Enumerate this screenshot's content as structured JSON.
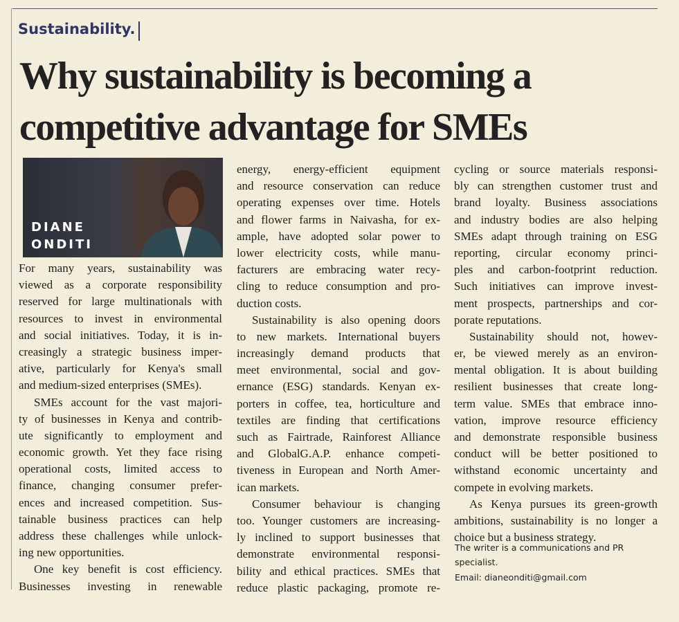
{
  "section": "Sustainability.",
  "headline": [
    "Why sustainability is becoming a",
    "competitive advantage for SMEs"
  ],
  "author": {
    "first": "DIANE",
    "last": "ONDITI"
  },
  "columns": [
    {
      "paragraphs": [
        {
          "lines": [
            "For many years, sustainability was",
            "viewed as a corporate responsibility",
            "reserved for large multinationals with",
            "resources to invest in environmental",
            "and social initiatives. Today, it is in-",
            "creasingly a strategic business imper-",
            "ative, particularly for Kenya's small",
            "and medium-sized enterprises (SMEs)."
          ]
        },
        {
          "lines": [
            "SMEs account for the vast majori-",
            "ty of businesses in Kenya and contrib-",
            "ute significantly to employment and",
            "economic growth. Yet they face rising",
            "operational costs, limited access to",
            "finance, changing consumer prefer-",
            "ences and increased competition. Sus-",
            "tainable business practices can help",
            "address these challenges while unlock-",
            "ing new opportunities."
          ]
        },
        {
          "lines": [
            "One key benefit is cost efficiency.",
            "Businesses investing in renewable"
          ]
        }
      ]
    },
    {
      "paragraphs": [
        {
          "lines": [
            "energy, energy-efficient equipment",
            "and resource conservation can reduce",
            "operating expenses over time. Hotels",
            "and flower farms in Naivasha, for ex-",
            "ample, have adopted solar power to",
            "lower electricity costs, while manu-",
            "facturers are embracing water recy-",
            "cling to reduce consumption and pro-",
            "duction costs."
          ]
        },
        {
          "lines": [
            "Sustainability is also opening doors",
            "to new markets. International buyers",
            "increasingly demand products that",
            "meet environmental, social and gov-",
            "ernance (ESG) standards. Kenyan ex-",
            "porters in coffee, tea, horticulture and",
            "textiles are finding that certifications",
            "such as Fairtrade, Rainforest Alliance",
            "and GlobalG.A.P. enhance competi-",
            "tiveness in European and North Amer-",
            "ican markets."
          ]
        },
        {
          "lines": [
            "Consumer behaviour is changing",
            "too. Younger customers are increasing-",
            "ly inclined to support businesses that",
            "demonstrate environmental responsi-",
            "bility and ethical practices. SMEs that",
            "reduce plastic packaging, promote re-"
          ]
        }
      ]
    },
    {
      "paragraphs": [
        {
          "lines": [
            "cycling or source materials responsi-",
            "bly can strengthen customer trust and",
            "brand loyalty. Business associations",
            "and industry bodies are also helping",
            "SMEs adapt through training on ESG",
            "reporting, circular economy princi-",
            "ples and carbon-footprint reduction.",
            "Such initiatives can improve invest-",
            "ment prospects, partnerships and cor-",
            "porate reputations."
          ]
        },
        {
          "lines": [
            "Sustainability should not, howev-",
            "er, be viewed merely as an environ-",
            "mental obligation. It is about building",
            "resilient businesses that create long-",
            "term value. SMEs that embrace inno-",
            "vation, improve resource efficiency",
            "and demonstrate responsible business",
            "conduct will be better positioned to",
            "withstand economic uncertainty and",
            "compete in evolving markets."
          ]
        },
        {
          "lines": [
            "As Kenya pursues its green-growth",
            "ambitions, sustainability is no longer a",
            "choice but a business strategy."
          ]
        }
      ]
    }
  ],
  "footer": [
    "The writer is a communications and PR",
    "specialist.",
    "Email: dianeonditi@gmail.com"
  ]
}
